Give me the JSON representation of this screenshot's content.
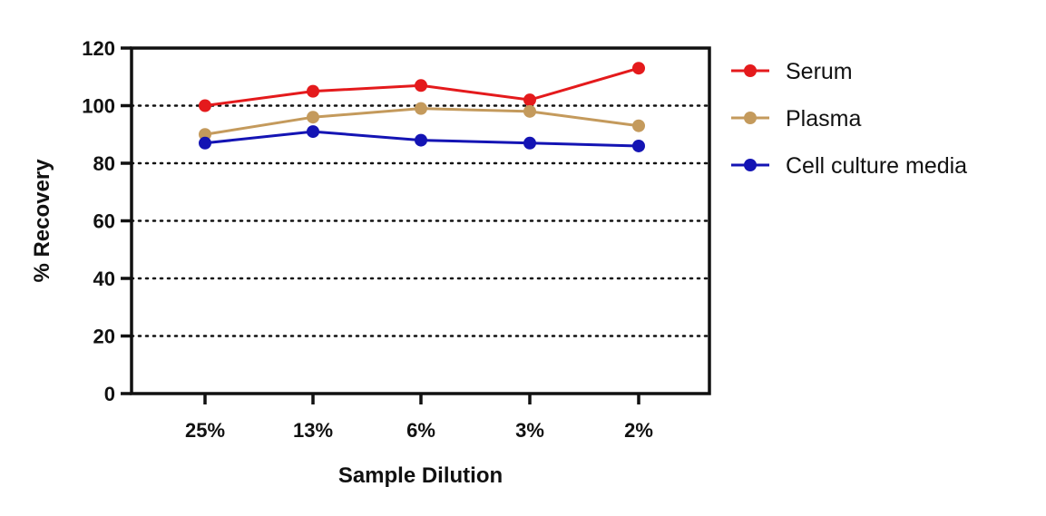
{
  "chart_data": {
    "type": "line",
    "title": "",
    "xlabel": "Sample Dilution",
    "ylabel": "% Recovery",
    "categories": [
      "25%",
      "13%",
      "6%",
      "3%",
      "2%"
    ],
    "ylim": [
      0,
      120
    ],
    "yticks": [
      0,
      20,
      40,
      60,
      80,
      100,
      120
    ],
    "ytick_labels": [
      "0",
      "20",
      "40",
      "60",
      "80",
      "100",
      "120"
    ],
    "grid": "horizontal dotted",
    "legend_position": "right",
    "series": [
      {
        "name": "Serum",
        "color": "#e41a1c",
        "values": [
          100,
          105,
          107,
          102,
          113
        ]
      },
      {
        "name": "Plasma",
        "color": "#c49a5c",
        "values": [
          90,
          96,
          99,
          98,
          93
        ]
      },
      {
        "name": "Cell culture media",
        "color": "#1414b4",
        "values": [
          87,
          91,
          88,
          87,
          86
        ]
      }
    ]
  }
}
